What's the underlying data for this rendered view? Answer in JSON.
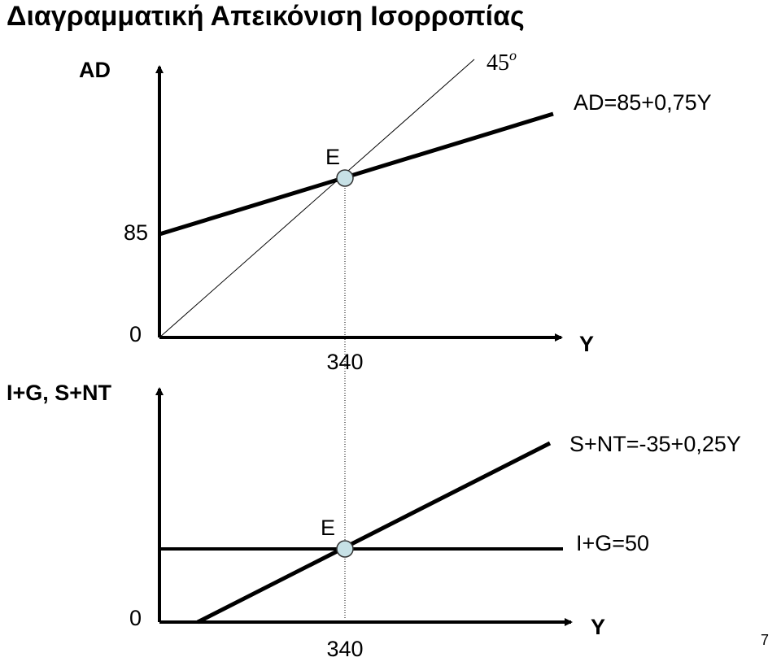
{
  "header": {
    "title": "Διαγραμματική Απεικόνιση Ισορροπίας"
  },
  "top_panel": {
    "y_axis_label": "AD",
    "angle_label": "45",
    "angle_superscript": "o",
    "curve_label": "AD=85+0,75Y",
    "point_label": "E",
    "intercept_label": "85",
    "origin_label": "0",
    "x_axis_label": "Y",
    "equilibrium_label": "340"
  },
  "bottom_panel": {
    "y_axis_label": "I+G, S+NT",
    "saving_label": "S+NT=-35+0,25Y",
    "point_label": "E",
    "investment_label": "I+G=50",
    "origin_label": "0",
    "x_axis_label": "Y",
    "equilibrium_label": "340"
  },
  "footer": {
    "page_number": "7"
  }
}
